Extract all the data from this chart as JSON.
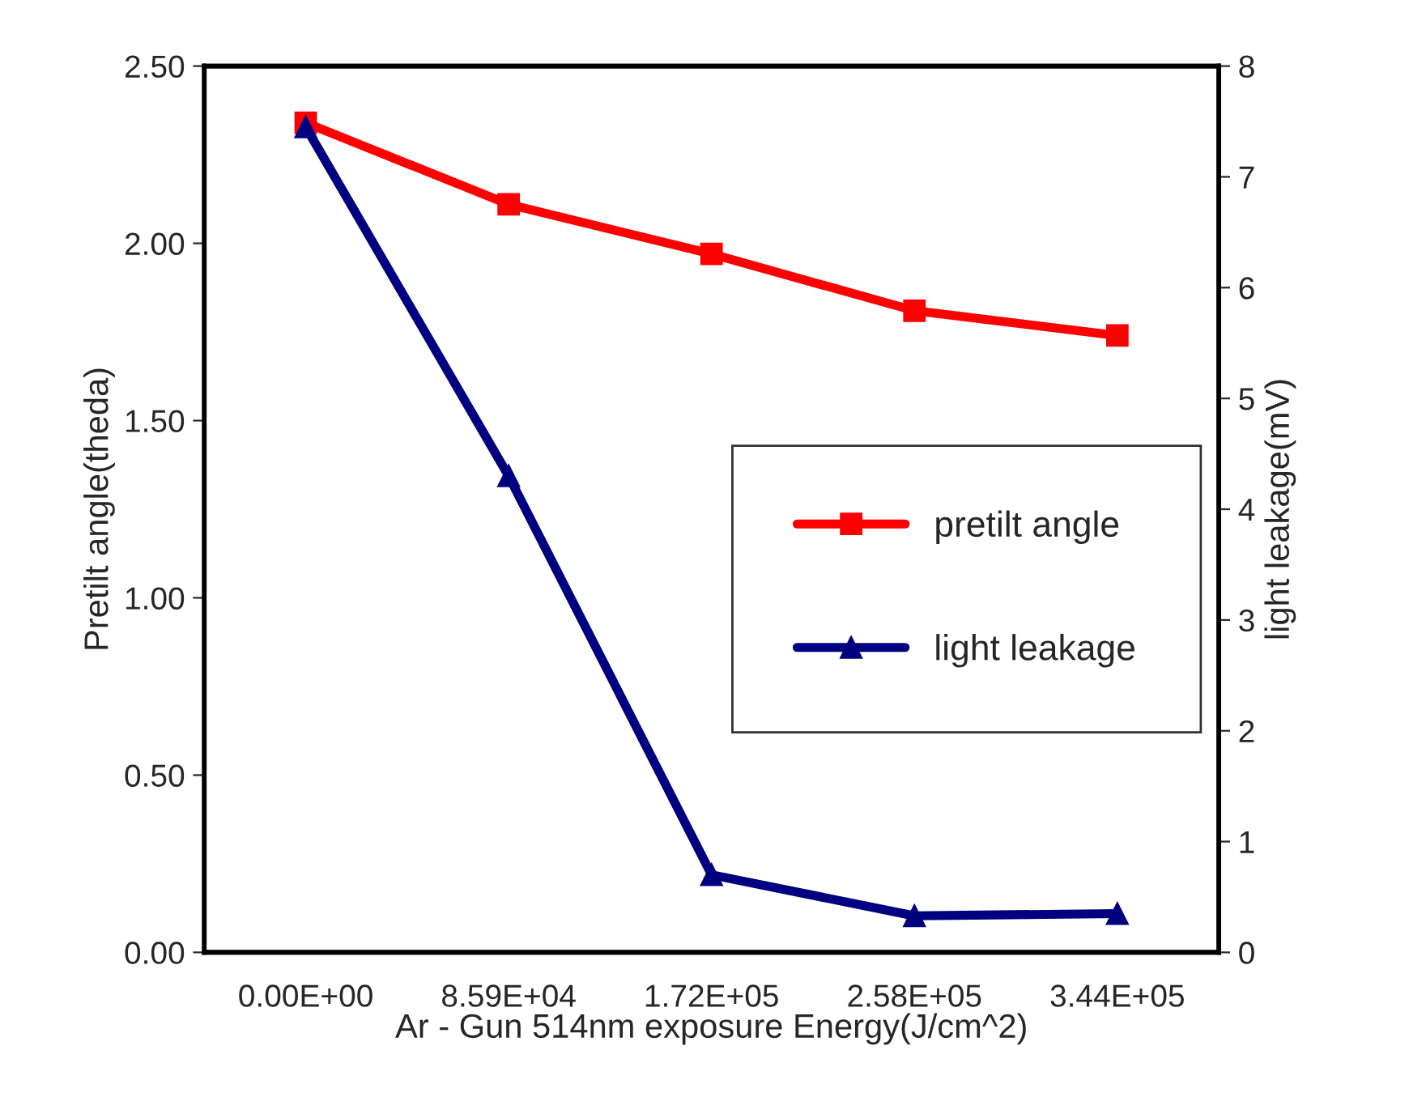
{
  "chart_data": {
    "type": "line",
    "xlabel": "Ar - Gun 514nm exposure Energy(J/cm^2)",
    "ylabel": "Pretilt angle(theda)",
    "y2label": "light leakage(mV)",
    "categories": [
      "0.00E+00",
      "8.59E+04",
      "1.72E+05",
      "2.58E+05",
      "3.44E+05"
    ],
    "series": [
      {
        "name": "pretilt angle",
        "color": "#ff0000",
        "marker": "square",
        "values": [
          2.34,
          2.11,
          1.97,
          1.81,
          1.74
        ]
      },
      {
        "name": "light leakage",
        "color": "#000080",
        "marker": "triangle",
        "axis": "y2",
        "values": [
          7.45,
          4.3,
          0.7,
          0.33,
          0.35
        ]
      }
    ],
    "ylim": [
      0,
      2.5
    ],
    "yticks": [
      {
        "value": 0,
        "label": "0.00"
      },
      {
        "value": 0.5,
        "label": "0.50"
      },
      {
        "value": 1.0,
        "label": "1.00"
      },
      {
        "value": 1.5,
        "label": "1.50"
      },
      {
        "value": 2.0,
        "label": "2.00"
      },
      {
        "value": 2.5,
        "label": "2.50"
      }
    ],
    "y2lim": [
      0,
      8
    ],
    "y2ticks": [
      0,
      1,
      2,
      3,
      4,
      5,
      6,
      7,
      8
    ],
    "legend": "right",
    "grid": false,
    "line_style": "solid"
  }
}
